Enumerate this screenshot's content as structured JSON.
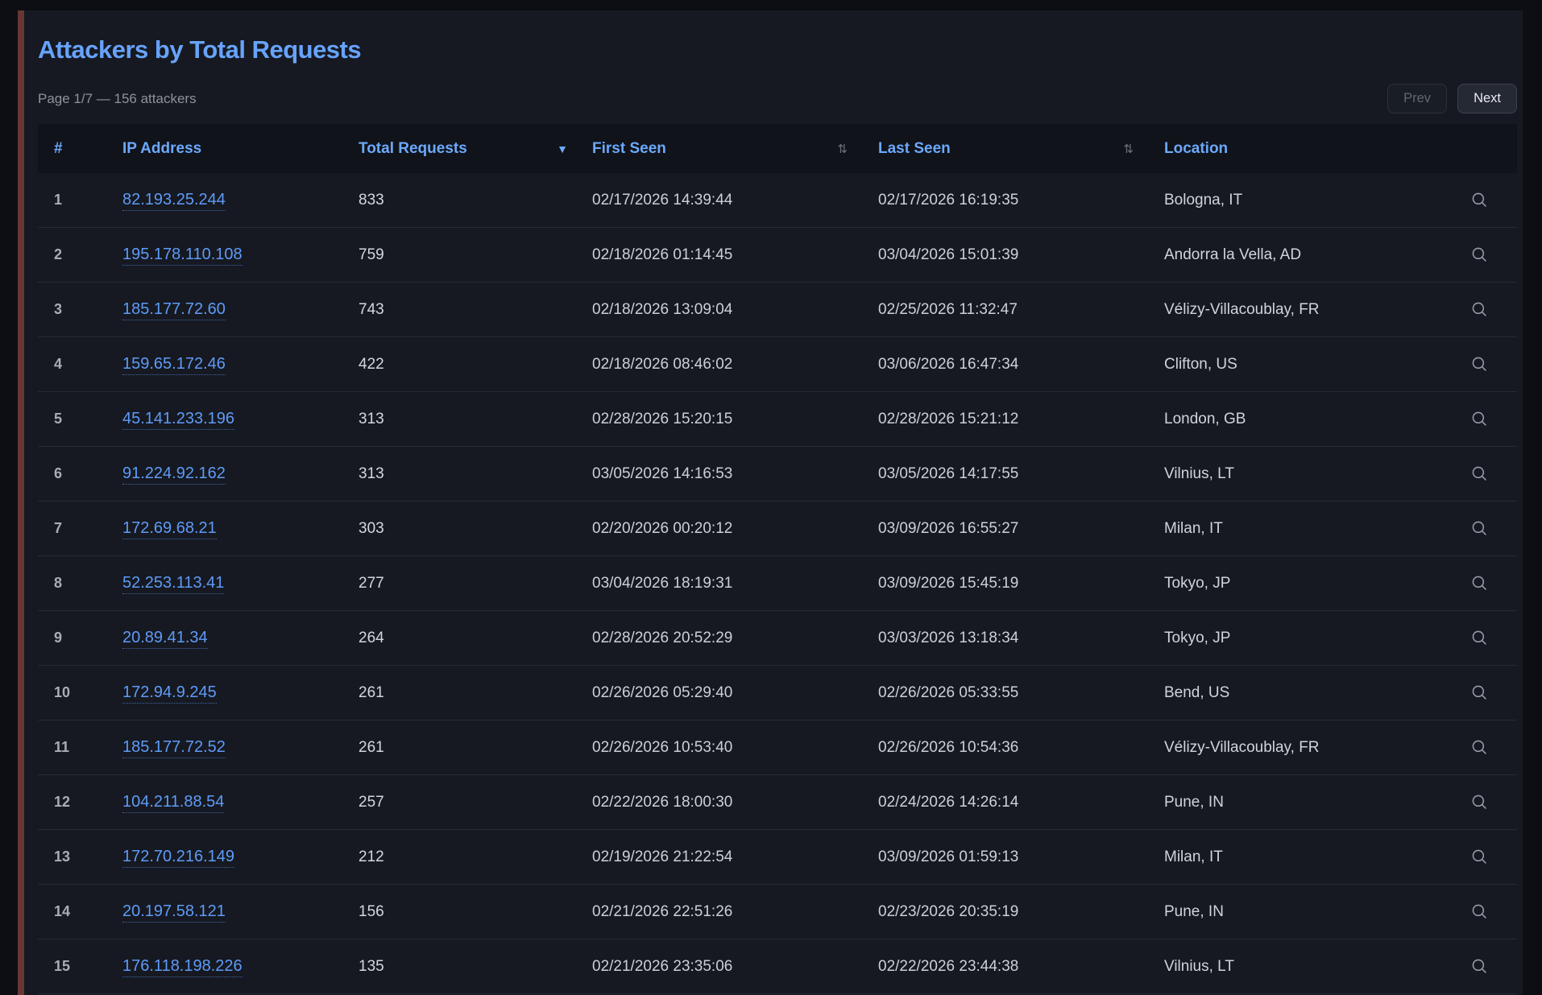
{
  "page": {
    "title": "Attackers by Total Requests",
    "pagination": {
      "status": "Page 1/7 — 156 attackers",
      "prev_label": "Prev",
      "next_label": "Next"
    }
  },
  "icons": {
    "sort_desc_glyph": "▼",
    "sort_updown_glyph": "⇅",
    "row_action": "search-icon"
  },
  "colors": {
    "header_blue": "#6ca9fc",
    "link_blue": "#5e9bf7",
    "accent_strip_red": "#6a3634",
    "panel_bg": "#161921",
    "header_row_bg": "#10131a"
  },
  "table": {
    "columns": [
      {
        "key": "rank",
        "label": "#",
        "sort": null
      },
      {
        "key": "ip",
        "label": "IP Address",
        "sort": null
      },
      {
        "key": "total",
        "label": "Total Requests",
        "sort": "desc"
      },
      {
        "key": "first_seen",
        "label": "First Seen",
        "sort": "toggle"
      },
      {
        "key": "last_seen",
        "label": "Last Seen",
        "sort": "toggle"
      },
      {
        "key": "location",
        "label": "Location",
        "sort": null
      },
      {
        "key": "actions",
        "label": "",
        "sort": null
      }
    ],
    "rows": [
      {
        "rank": "1",
        "ip": "82.193.25.244",
        "total": "833",
        "first_seen": "02/17/2026 14:39:44",
        "last_seen": "02/17/2026 16:19:35",
        "location": "Bologna, IT"
      },
      {
        "rank": "2",
        "ip": "195.178.110.108",
        "total": "759",
        "first_seen": "02/18/2026 01:14:45",
        "last_seen": "03/04/2026 15:01:39",
        "location": "Andorra la Vella, AD"
      },
      {
        "rank": "3",
        "ip": "185.177.72.60",
        "total": "743",
        "first_seen": "02/18/2026 13:09:04",
        "last_seen": "02/25/2026 11:32:47",
        "location": "Vélizy-Villacoublay, FR"
      },
      {
        "rank": "4",
        "ip": "159.65.172.46",
        "total": "422",
        "first_seen": "02/18/2026 08:46:02",
        "last_seen": "03/06/2026 16:47:34",
        "location": "Clifton, US"
      },
      {
        "rank": "5",
        "ip": "45.141.233.196",
        "total": "313",
        "first_seen": "02/28/2026 15:20:15",
        "last_seen": "02/28/2026 15:21:12",
        "location": "London, GB"
      },
      {
        "rank": "6",
        "ip": "91.224.92.162",
        "total": "313",
        "first_seen": "03/05/2026 14:16:53",
        "last_seen": "03/05/2026 14:17:55",
        "location": "Vilnius, LT"
      },
      {
        "rank": "7",
        "ip": "172.69.68.21",
        "total": "303",
        "first_seen": "02/20/2026 00:20:12",
        "last_seen": "03/09/2026 16:55:27",
        "location": "Milan, IT"
      },
      {
        "rank": "8",
        "ip": "52.253.113.41",
        "total": "277",
        "first_seen": "03/04/2026 18:19:31",
        "last_seen": "03/09/2026 15:45:19",
        "location": "Tokyo, JP"
      },
      {
        "rank": "9",
        "ip": "20.89.41.34",
        "total": "264",
        "first_seen": "02/28/2026 20:52:29",
        "last_seen": "03/03/2026 13:18:34",
        "location": "Tokyo, JP"
      },
      {
        "rank": "10",
        "ip": "172.94.9.245",
        "total": "261",
        "first_seen": "02/26/2026 05:29:40",
        "last_seen": "02/26/2026 05:33:55",
        "location": "Bend, US"
      },
      {
        "rank": "11",
        "ip": "185.177.72.52",
        "total": "261",
        "first_seen": "02/26/2026 10:53:40",
        "last_seen": "02/26/2026 10:54:36",
        "location": "Vélizy-Villacoublay, FR"
      },
      {
        "rank": "12",
        "ip": "104.211.88.54",
        "total": "257",
        "first_seen": "02/22/2026 18:00:30",
        "last_seen": "02/24/2026 14:26:14",
        "location": "Pune, IN"
      },
      {
        "rank": "13",
        "ip": "172.70.216.149",
        "total": "212",
        "first_seen": "02/19/2026 21:22:54",
        "last_seen": "03/09/2026 01:59:13",
        "location": "Milan, IT"
      },
      {
        "rank": "14",
        "ip": "20.197.58.121",
        "total": "156",
        "first_seen": "02/21/2026 22:51:26",
        "last_seen": "02/23/2026 20:35:19",
        "location": "Pune, IN"
      },
      {
        "rank": "15",
        "ip": "176.118.198.226",
        "total": "135",
        "first_seen": "02/21/2026 23:35:06",
        "last_seen": "02/22/2026 23:44:38",
        "location": "Vilnius, LT"
      }
    ]
  }
}
